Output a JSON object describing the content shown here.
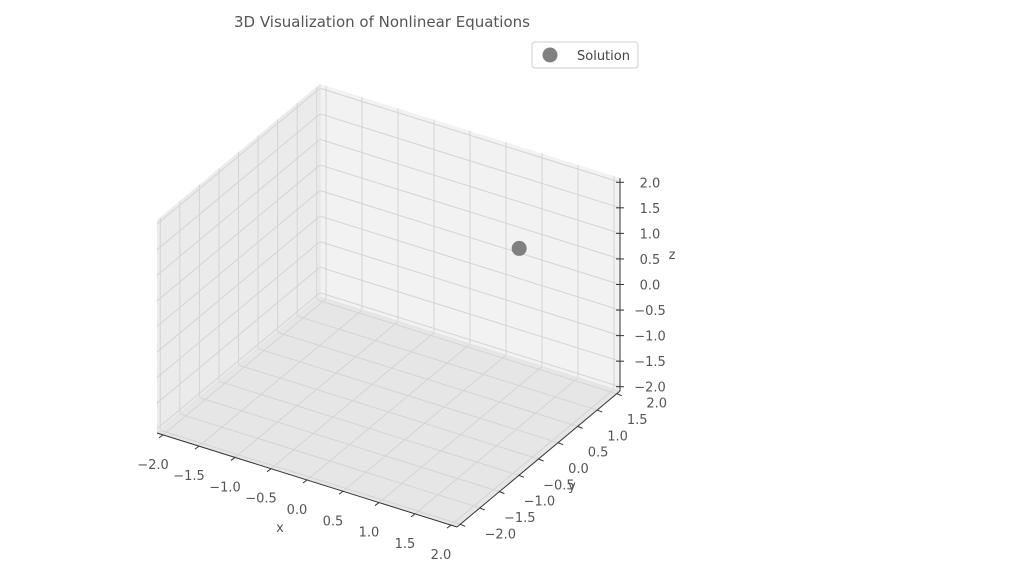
{
  "chart_data": {
    "type": "scatter",
    "projection": "3d",
    "title": "3D Visualization of Nonlinear Equations",
    "xlabel": "x",
    "ylabel": "y",
    "zlabel": "z",
    "xlim": [
      -2.0,
      2.0
    ],
    "ylim": [
      -2.0,
      2.0
    ],
    "zlim": [
      -2.0,
      2.0
    ],
    "x_ticks": [
      "−2.0",
      "−1.5",
      "−1.0",
      "−0.5",
      "0.0",
      "0.5",
      "1.0",
      "1.5",
      "2.0"
    ],
    "y_ticks": [
      "−2.0",
      "−1.5",
      "−1.0",
      "−0.5",
      "0.0",
      "0.5",
      "1.0",
      "1.5",
      "2.0"
    ],
    "z_ticks": [
      "−2.0",
      "−1.5",
      "−1.0",
      "−0.5",
      "0.0",
      "0.5",
      "1.0",
      "1.5",
      "2.0"
    ],
    "grid": true,
    "legend_position": "top-right",
    "series": [
      {
        "name": "Solution",
        "color": "#808080",
        "points": [
          {
            "x": 1.0,
            "y": 1.5,
            "z": 0.6
          }
        ]
      }
    ]
  }
}
